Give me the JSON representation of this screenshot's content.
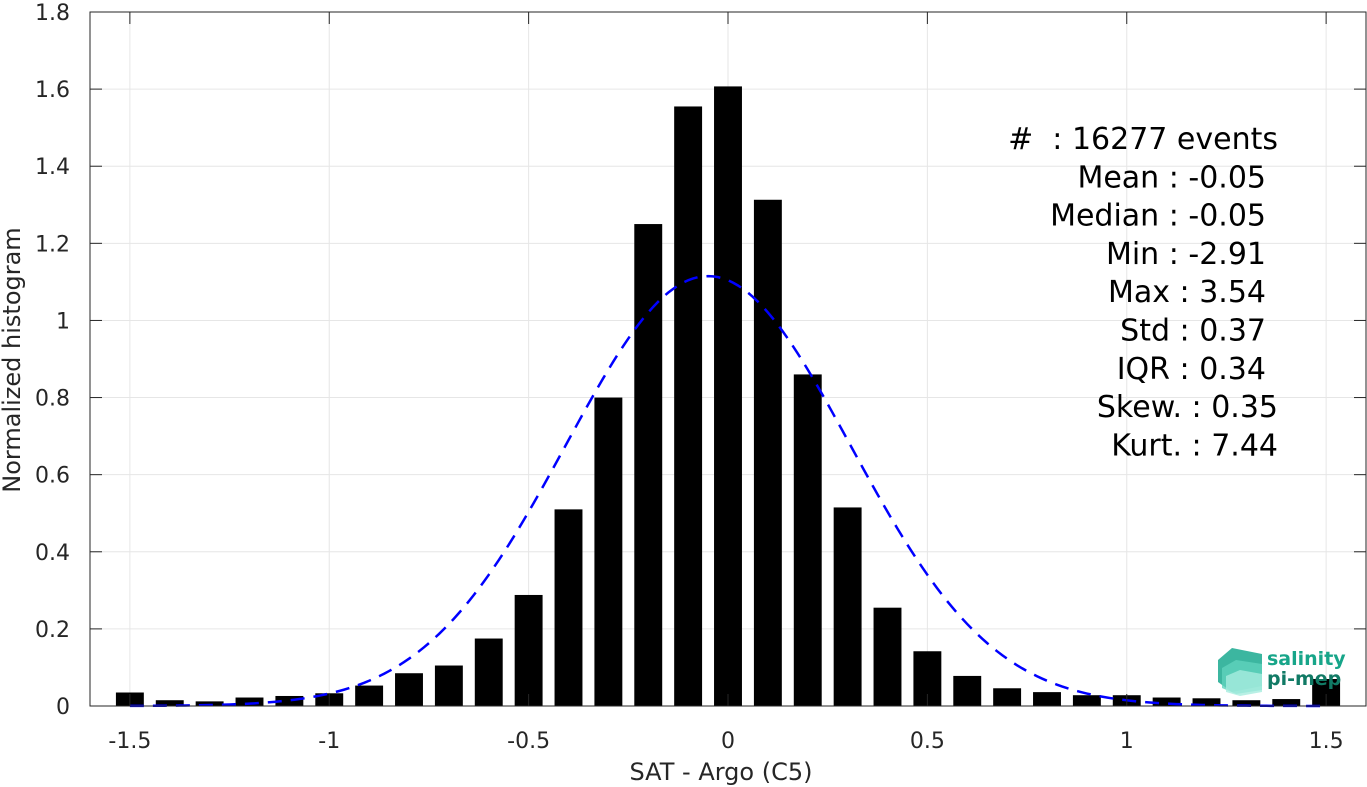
{
  "chart_data": {
    "type": "bar",
    "xlabel": "SAT - Argo (C5)",
    "ylabel": "Normalized histogram",
    "xlim": [
      -1.6,
      1.6
    ],
    "ylim": [
      0,
      1.8
    ],
    "xticks": [
      -1.5,
      -1,
      -0.5,
      0,
      0.5,
      1,
      1.5
    ],
    "xtick_labels": [
      "-1.5",
      "-1",
      "-0.5",
      "0",
      "0.5",
      "1",
      "1.5"
    ],
    "yticks": [
      0,
      0.2,
      0.4,
      0.6,
      0.8,
      1,
      1.2,
      1.4,
      1.6,
      1.8
    ],
    "ytick_labels": [
      "0",
      "0.2",
      "0.4",
      "0.6",
      "0.8",
      "1",
      "1.2",
      "1.4",
      "1.6",
      "1.8"
    ],
    "grid": true,
    "bar_color": "#000000",
    "bar_width": 0.07,
    "bins": [
      {
        "x": -1.5,
        "y": 0.035
      },
      {
        "x": -1.4,
        "y": 0.015
      },
      {
        "x": -1.3,
        "y": 0.012
      },
      {
        "x": -1.2,
        "y": 0.022
      },
      {
        "x": -1.1,
        "y": 0.026
      },
      {
        "x": -1.0,
        "y": 0.033
      },
      {
        "x": -0.9,
        "y": 0.053
      },
      {
        "x": -0.8,
        "y": 0.085
      },
      {
        "x": -0.7,
        "y": 0.105
      },
      {
        "x": -0.6,
        "y": 0.175
      },
      {
        "x": -0.5,
        "y": 0.288
      },
      {
        "x": -0.4,
        "y": 0.51
      },
      {
        "x": -0.3,
        "y": 0.8
      },
      {
        "x": -0.2,
        "y": 1.25
      },
      {
        "x": -0.1,
        "y": 1.555
      },
      {
        "x": 0.0,
        "y": 1.607
      },
      {
        "x": 0.1,
        "y": 1.313
      },
      {
        "x": 0.2,
        "y": 0.86
      },
      {
        "x": 0.3,
        "y": 0.515
      },
      {
        "x": 0.4,
        "y": 0.255
      },
      {
        "x": 0.5,
        "y": 0.142
      },
      {
        "x": 0.6,
        "y": 0.078
      },
      {
        "x": 0.7,
        "y": 0.046
      },
      {
        "x": 0.8,
        "y": 0.036
      },
      {
        "x": 0.9,
        "y": 0.028
      },
      {
        "x": 1.0,
        "y": 0.028
      },
      {
        "x": 1.1,
        "y": 0.022
      },
      {
        "x": 1.2,
        "y": 0.02
      },
      {
        "x": 1.3,
        "y": 0.015
      },
      {
        "x": 1.4,
        "y": 0.018
      },
      {
        "x": 1.5,
        "y": 0.07
      }
    ],
    "fit_curve": {
      "type": "gaussian",
      "style": "dashed",
      "color": "#0000ff",
      "mean": -0.05,
      "std": 0.357,
      "peak": 1.115,
      "x_range": [
        -1.5,
        1.5
      ]
    },
    "stats": [
      "#  : 16277 events",
      "Mean : -0.05",
      "Median : -0.05",
      "Min : -2.91",
      "Max : 3.54",
      "Std : 0.37",
      "IQR : 0.34",
      "Skew. : 0.35",
      "Kurt. : 7.44"
    ]
  },
  "logo": {
    "line1": "salinity",
    "line2": "pi-mep",
    "color": "#17a589"
  }
}
